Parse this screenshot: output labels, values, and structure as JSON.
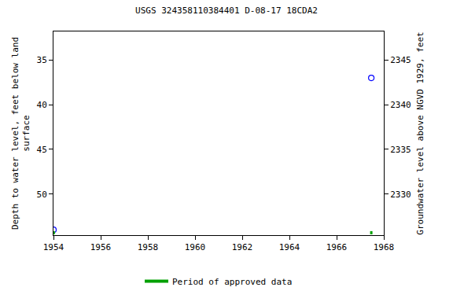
{
  "chart_data": {
    "type": "scatter",
    "title": "USGS 324358110384401 D-08-17 18CDA2",
    "x_label": null,
    "y_label": "Depth to water level, feet below land\nsurface",
    "y2_label": "Groundwater level above NGVD 1929, feet",
    "xlim": [
      1954,
      1968
    ],
    "xticks": [
      1954,
      1956,
      1958,
      1960,
      1962,
      1964,
      1966,
      1968
    ],
    "ylim": [
      54.6,
      31.8
    ],
    "yticks": [
      35,
      40,
      45,
      50
    ],
    "y2lim": [
      2325.4,
      2348.2
    ],
    "y2ticks": [
      2330,
      2335,
      2340,
      2345
    ],
    "grid": false,
    "legend": "bottom",
    "series": [
      {
        "x": [
          1954.0,
          1967.47
        ],
        "values": [
          54.0,
          37.0
        ],
        "color": "#0000ff",
        "marker": "circle-open"
      },
      {
        "name": "Period of approved data",
        "type": "period",
        "color": "#00a000",
        "periods": [
          [
            1953.98,
            1954.06
          ],
          [
            1967.42,
            1967.52
          ]
        ]
      }
    ]
  }
}
